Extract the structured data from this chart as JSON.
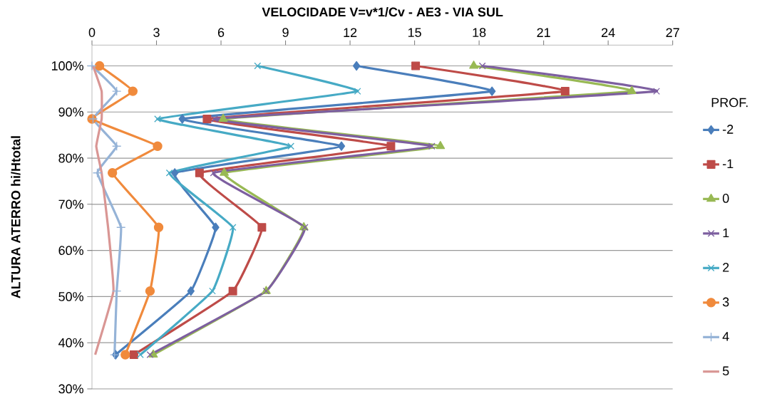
{
  "chart_data": {
    "type": "line",
    "title": "VELOCIDADE V=v*1/Cv  -  AE3  -  VIA SUL",
    "ylabel": "ALTURA ATERRO hi/Htotal",
    "legend_title": "PROF.",
    "xlim": [
      0,
      27
    ],
    "xticks": [
      0,
      3,
      6,
      9,
      12,
      15,
      18,
      21,
      24,
      27
    ],
    "ylim": [
      30,
      104.5
    ],
    "yticks": [
      {
        "value": 30,
        "label": "30%"
      },
      {
        "value": 40,
        "label": "40%"
      },
      {
        "value": 50,
        "label": "50%"
      },
      {
        "value": 60,
        "label": "60%"
      },
      {
        "value": 70,
        "label": "70%"
      },
      {
        "value": 80,
        "label": "80%"
      },
      {
        "value": 90,
        "label": "90%"
      },
      {
        "value": 100,
        "label": "100%"
      }
    ],
    "grid": "y",
    "legend": "right",
    "line_style": "solid",
    "series": [
      {
        "name": "-2",
        "color": "#4a7ebb",
        "marker": "diamond",
        "x": [
          12.3,
          18.6,
          4.2,
          11.6,
          3.85,
          5.75,
          4.6,
          1.1
        ],
        "values": [
          100,
          94.5,
          88.5,
          82.6,
          76.8,
          65,
          51.2,
          37.4
        ]
      },
      {
        "name": "-1",
        "color": "#be4b48",
        "marker": "square",
        "x": [
          15.05,
          22.0,
          5.35,
          13.9,
          5.0,
          7.9,
          6.55,
          1.95
        ],
        "values": [
          100,
          94.5,
          88.5,
          82.6,
          76.8,
          65,
          51.2,
          37.4
        ]
      },
      {
        "name": "0",
        "color": "#98b954",
        "marker": "triangle",
        "x": [
          17.75,
          25.1,
          6.1,
          16.2,
          6.15,
          9.85,
          8.1,
          2.85
        ],
        "values": [
          100,
          94.5,
          88.5,
          82.6,
          76.8,
          65,
          51.2,
          37.4
        ]
      },
      {
        "name": "1",
        "color": "#7d5fa0",
        "marker": "cross",
        "x": [
          18.15,
          26.25,
          5.7,
          15.8,
          5.65,
          9.9,
          8.1,
          2.7
        ],
        "values": [
          100,
          94.5,
          88.5,
          82.6,
          76.8,
          65,
          51.2,
          37.4
        ]
      },
      {
        "name": "2",
        "color": "#46aac5",
        "marker": "cross",
        "x": [
          7.7,
          12.35,
          3.05,
          9.25,
          3.6,
          6.55,
          5.6,
          2.25
        ],
        "values": [
          100,
          94.5,
          88.5,
          82.6,
          76.8,
          65,
          51.2,
          37.4
        ]
      },
      {
        "name": "3",
        "color": "#f08a3c",
        "marker": "circle",
        "x": [
          0.35,
          1.9,
          0,
          3.05,
          0.95,
          3.1,
          2.7,
          1.55
        ],
        "values": [
          100,
          94.5,
          88.5,
          82.6,
          76.8,
          65,
          51.2,
          37.4
        ]
      },
      {
        "name": "4",
        "color": "#95b3d7",
        "marker": "plus",
        "x": [
          0,
          1.15,
          0.05,
          1.15,
          0.25,
          1.35,
          1.15,
          1.05
        ],
        "values": [
          100,
          94.5,
          88.5,
          82.6,
          76.8,
          65,
          51.2,
          37.4
        ]
      },
      {
        "name": "5",
        "color": "#d99694",
        "marker": "none",
        "x": [
          0.05,
          0.45,
          0.45,
          0.2,
          0.45,
          0.75,
          1.0,
          0.15
        ],
        "values": [
          100,
          94.5,
          88.5,
          82.6,
          76.8,
          65,
          51.2,
          37.4
        ]
      }
    ]
  }
}
